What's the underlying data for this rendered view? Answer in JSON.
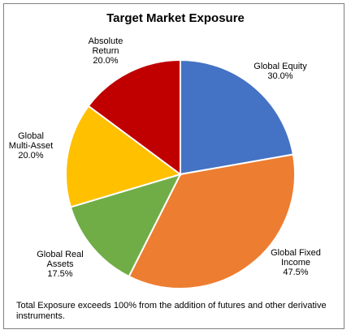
{
  "chart_data": {
    "type": "pie",
    "title": "Target Market Exposure",
    "categories": [
      "Global Equity",
      "Global Fixed Income",
      "Global Real Assets",
      "Global Multi-Asset",
      "Absolute Return"
    ],
    "values": [
      30,
      47.5,
      17.5,
      20,
      20
    ],
    "value_labels": [
      "30.0%",
      "47.5%",
      "17.5%",
      "20.0%",
      "20.0%"
    ],
    "colors": [
      "#4472c4",
      "#ed7d31",
      "#70ad47",
      "#ffc000",
      "#c00000"
    ],
    "note": "Total Exposure exceeds 100% from the addition of futures and other derivative instruments."
  }
}
